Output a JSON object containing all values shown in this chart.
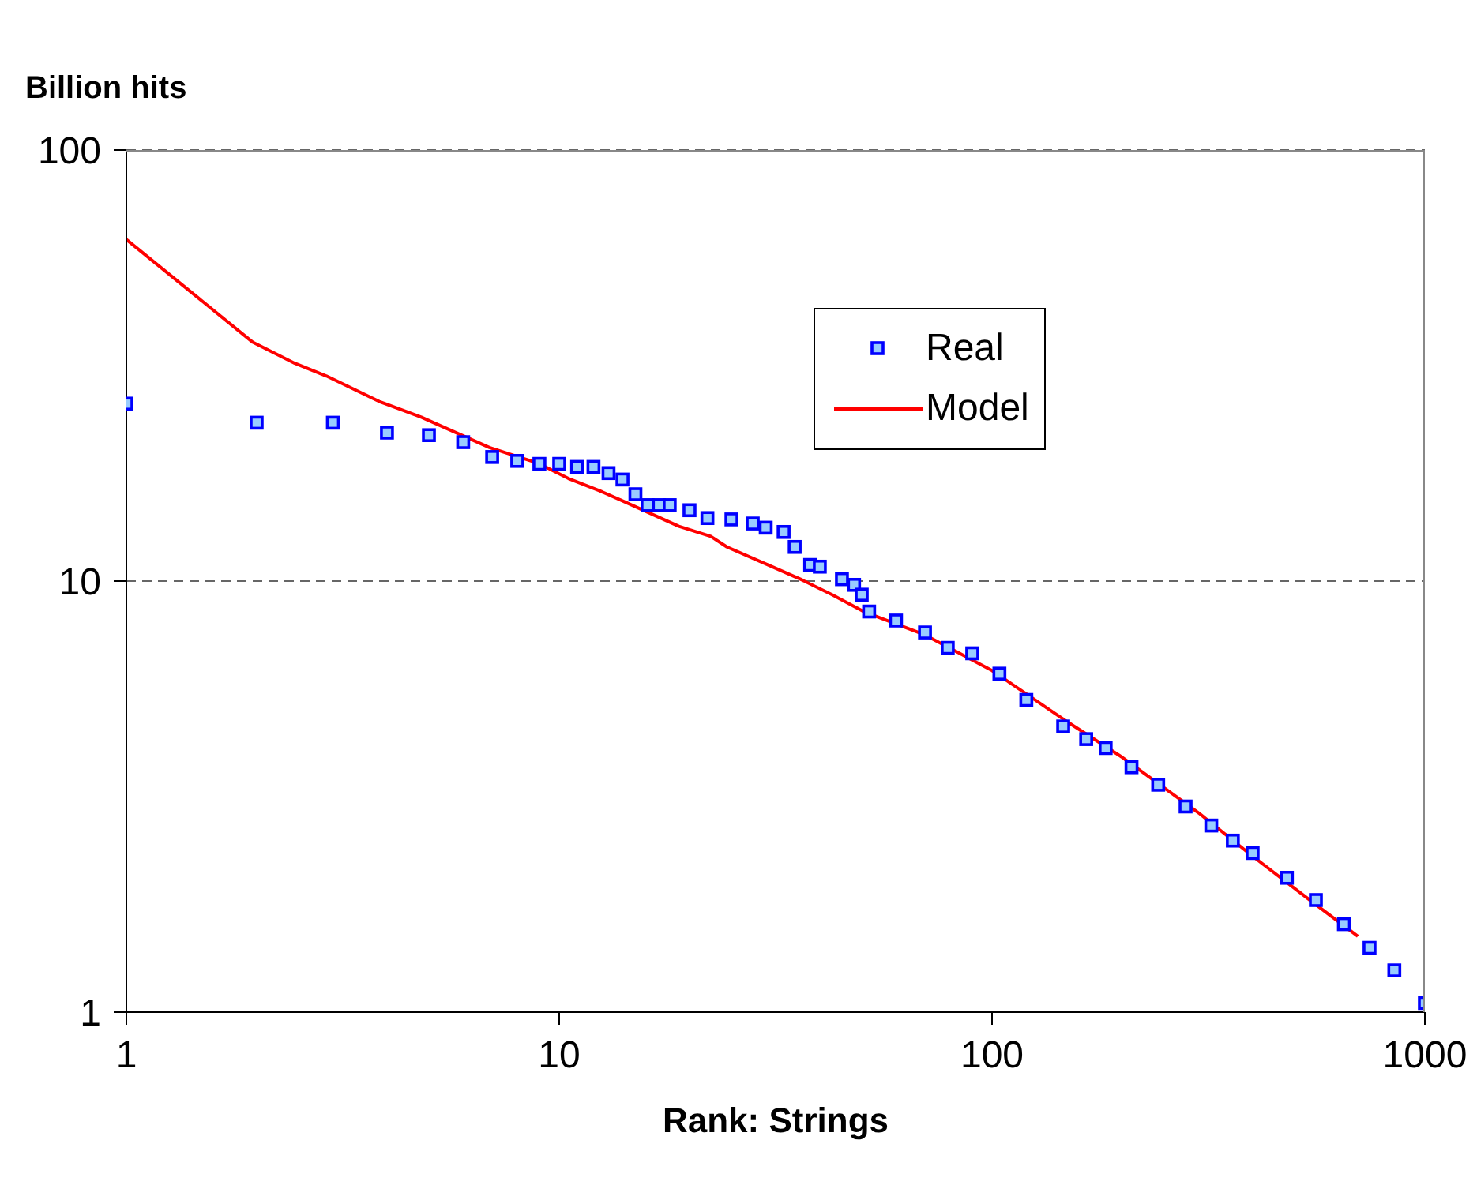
{
  "chart_data": {
    "type": "scatter",
    "ylabel": "Billion hits",
    "xlabel": "Rank: Strings",
    "log": "xy",
    "xlim": [
      1,
      1000
    ],
    "ylim": [
      1,
      100
    ],
    "xticks": [
      1,
      10,
      100,
      1000
    ],
    "yticks": [
      1,
      10,
      100
    ],
    "grid": "y",
    "legend": "top right",
    "series": [
      {
        "name": "Real",
        "type": "scatter",
        "color": "#0000ff",
        "marker": "square",
        "x": [
          1,
          2,
          3,
          4,
          5,
          6,
          7,
          8,
          9,
          10,
          11,
          12,
          13,
          14,
          15,
          16,
          17,
          18,
          20,
          22,
          25,
          28,
          30,
          33,
          35,
          38,
          40,
          45,
          48,
          50,
          52,
          60,
          70,
          79,
          90,
          104,
          120,
          146,
          165,
          183,
          210,
          242,
          280,
          321,
          360,
          400,
          480,
          560,
          650,
          745,
          850,
          1000
        ],
        "values": [
          25.8,
          23.3,
          23.3,
          22.1,
          21.8,
          21.0,
          19.4,
          19.0,
          18.7,
          18.7,
          18.4,
          18.4,
          17.8,
          17.2,
          15.9,
          15.0,
          15.0,
          15.0,
          14.6,
          14.0,
          13.9,
          13.6,
          13.3,
          13.0,
          12.0,
          10.9,
          10.8,
          10.1,
          9.8,
          9.3,
          8.5,
          8.1,
          7.6,
          7.0,
          6.8,
          6.1,
          5.3,
          4.6,
          4.3,
          4.1,
          3.7,
          3.37,
          3.0,
          2.71,
          2.5,
          2.34,
          2.05,
          1.82,
          1.6,
          1.41,
          1.25,
          1.05
        ]
      },
      {
        "name": "Model",
        "type": "line",
        "color": "#ff0000",
        "marker": "none",
        "line_style": "solid",
        "x": [
          1,
          1.96,
          2.45,
          2.9,
          3.84,
          4.8,
          6.9,
          8.9,
          10.5,
          12.4,
          13.9,
          18.9,
          22.4,
          24.4,
          30.4,
          36.1,
          42.7,
          50.5,
          70,
          100,
          150,
          200,
          300,
          400,
          550,
          700
        ],
        "values": [
          62,
          35.8,
          32,
          29.9,
          26.1,
          24.0,
          20.4,
          18.8,
          17.3,
          16.2,
          15.4,
          13.4,
          12.7,
          12.0,
          10.9,
          10.1,
          9.3,
          8.5,
          7.5,
          6.2,
          4.7,
          3.9,
          2.9,
          2.3,
          1.8,
          1.5
        ]
      }
    ]
  }
}
